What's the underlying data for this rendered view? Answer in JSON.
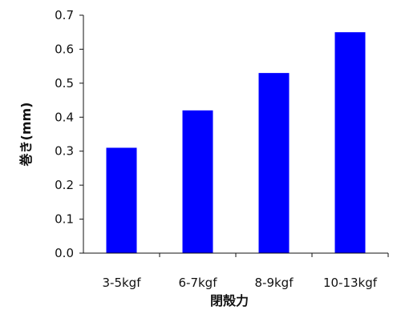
{
  "chart_data": {
    "type": "bar",
    "title": "",
    "xlabel": "閉殻力",
    "ylabel": "巻き(mm)",
    "categories": [
      "3-5kgf",
      "6-7kgf",
      "8-9kgf",
      "10-13kgf"
    ],
    "values": [
      0.31,
      0.42,
      0.53,
      0.65
    ],
    "ylim": [
      0,
      0.7
    ],
    "yticks": [
      "0.0",
      "0.1",
      "0.2",
      "0.3",
      "0.4",
      "0.5",
      "0.6",
      "0.7"
    ],
    "bar_color": "#0000FF",
    "grid": false,
    "legend": "none"
  }
}
